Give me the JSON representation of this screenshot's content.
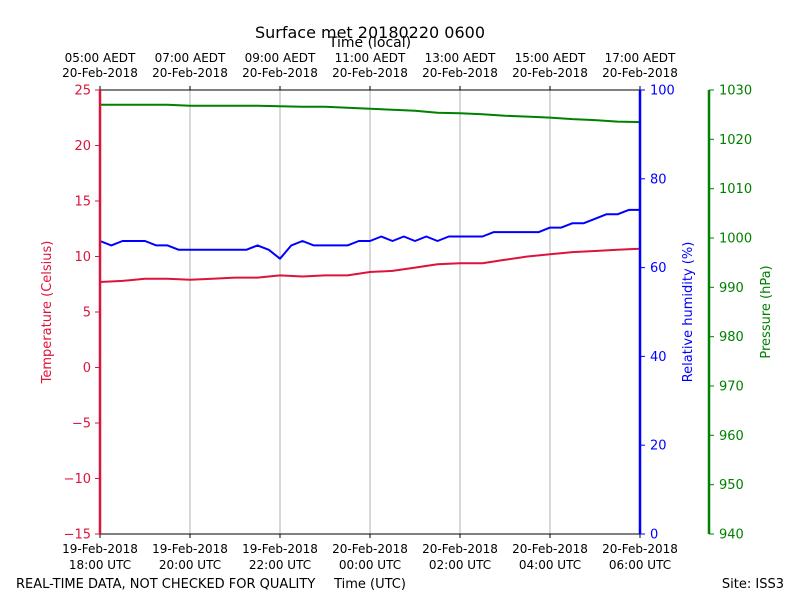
{
  "chart_data": {
    "type": "line",
    "title": "Surface met 20180220 0600",
    "top_axis_label": "Time (local)",
    "top_ticks": [
      {
        "line1": "05:00 AEDT",
        "line2": "20-Feb-2018"
      },
      {
        "line1": "07:00 AEDT",
        "line2": "20-Feb-2018"
      },
      {
        "line1": "09:00 AEDT",
        "line2": "20-Feb-2018"
      },
      {
        "line1": "11:00 AEDT",
        "line2": "20-Feb-2018"
      },
      {
        "line1": "13:00 AEDT",
        "line2": "20-Feb-2018"
      },
      {
        "line1": "15:00 AEDT",
        "line2": "20-Feb-2018"
      },
      {
        "line1": "17:00 AEDT",
        "line2": "20-Feb-2018"
      }
    ],
    "xlabel": "Time (UTC)",
    "bottom_ticks": [
      {
        "line1": "19-Feb-2018",
        "line2": "18:00 UTC"
      },
      {
        "line1": "19-Feb-2018",
        "line2": "20:00 UTC"
      },
      {
        "line1": "19-Feb-2018",
        "line2": "22:00 UTC"
      },
      {
        "line1": "20-Feb-2018",
        "line2": "00:00 UTC"
      },
      {
        "line1": "20-Feb-2018",
        "line2": "02:00 UTC"
      },
      {
        "line1": "20-Feb-2018",
        "line2": "04:00 UTC"
      },
      {
        "line1": "20-Feb-2018",
        "line2": "06:00 UTC"
      }
    ],
    "x_hours": [
      0,
      2,
      4,
      6,
      8,
      10,
      12
    ],
    "xlim": [
      0,
      12
    ],
    "grid_x": true,
    "axes": {
      "temperature": {
        "label": "Temperature (Celsius)",
        "color": "#dc143c",
        "ylim": [
          -15,
          25
        ],
        "ticks": [
          -15,
          -10,
          -5,
          0,
          5,
          10,
          15,
          20,
          25
        ]
      },
      "humidity": {
        "label": "Relative humidity (%)",
        "color": "#0000ff",
        "ylim": [
          0,
          100
        ],
        "ticks": [
          0,
          20,
          40,
          60,
          80,
          100
        ]
      },
      "pressure": {
        "label": "Pressure (hPa)",
        "color": "#008000",
        "ylim": [
          940,
          1030
        ],
        "ticks": [
          940,
          950,
          960,
          970,
          980,
          990,
          1000,
          1010,
          1020,
          1030
        ]
      }
    },
    "series": [
      {
        "name": "Temperature (Celsius)",
        "axis": "temperature",
        "color": "#dc143c",
        "x": [
          0,
          0.5,
          1,
          1.5,
          2,
          2.5,
          3,
          3.5,
          4,
          4.5,
          5,
          5.5,
          6,
          6.5,
          7,
          7.5,
          8,
          8.5,
          9,
          9.5,
          10,
          10.5,
          11,
          11.5,
          12
        ],
        "values": [
          7.7,
          7.8,
          8.0,
          8.0,
          7.9,
          8.0,
          8.1,
          8.1,
          8.3,
          8.2,
          8.3,
          8.3,
          8.6,
          8.7,
          9.0,
          9.3,
          9.4,
          9.4,
          9.7,
          10.0,
          10.2,
          10.4,
          10.5,
          10.6,
          10.7
        ]
      },
      {
        "name": "Relative humidity (%)",
        "axis": "humidity",
        "color": "#0000ff",
        "x": [
          0,
          0.25,
          0.5,
          0.75,
          1,
          1.25,
          1.5,
          1.75,
          2,
          2.25,
          2.5,
          2.75,
          3,
          3.25,
          3.5,
          3.75,
          4,
          4.25,
          4.5,
          4.75,
          5,
          5.25,
          5.5,
          5.75,
          6,
          6.25,
          6.5,
          6.75,
          7,
          7.25,
          7.5,
          7.75,
          8,
          8.25,
          8.5,
          8.75,
          9,
          9.25,
          9.5,
          9.75,
          10,
          10.25,
          10.5,
          10.75,
          11,
          11.25,
          11.5,
          11.75,
          12
        ],
        "values": [
          66,
          65,
          66,
          66,
          66,
          65,
          65,
          64,
          64,
          64,
          64,
          64,
          64,
          64,
          65,
          64,
          62,
          65,
          66,
          65,
          65,
          65,
          65,
          66,
          66,
          67,
          66,
          67,
          66,
          67,
          66,
          67,
          67,
          67,
          67,
          68,
          68,
          68,
          68,
          68,
          69,
          69,
          70,
          70,
          71,
          72,
          72,
          73,
          73
        ]
      },
      {
        "name": "Pressure (hPa)",
        "axis": "pressure",
        "color": "#008000",
        "x": [
          0,
          0.5,
          1,
          1.5,
          2,
          2.5,
          3,
          3.5,
          4,
          4.5,
          5,
          5.5,
          6,
          6.5,
          7,
          7.5,
          8,
          8.5,
          9,
          9.5,
          10,
          10.5,
          11,
          11.5,
          12
        ],
        "values": [
          1027,
          1027,
          1027,
          1027,
          1026.8,
          1026.8,
          1026.8,
          1026.8,
          1026.7,
          1026.6,
          1026.6,
          1026.4,
          1026.2,
          1026,
          1025.8,
          1025.4,
          1025.3,
          1025.1,
          1024.8,
          1024.6,
          1024.4,
          1024.1,
          1023.9,
          1023.6,
          1023.5
        ]
      }
    ],
    "footer_left": "REAL-TIME DATA, NOT CHECKED FOR QUALITY",
    "footer_right": "Site: ISS3"
  }
}
